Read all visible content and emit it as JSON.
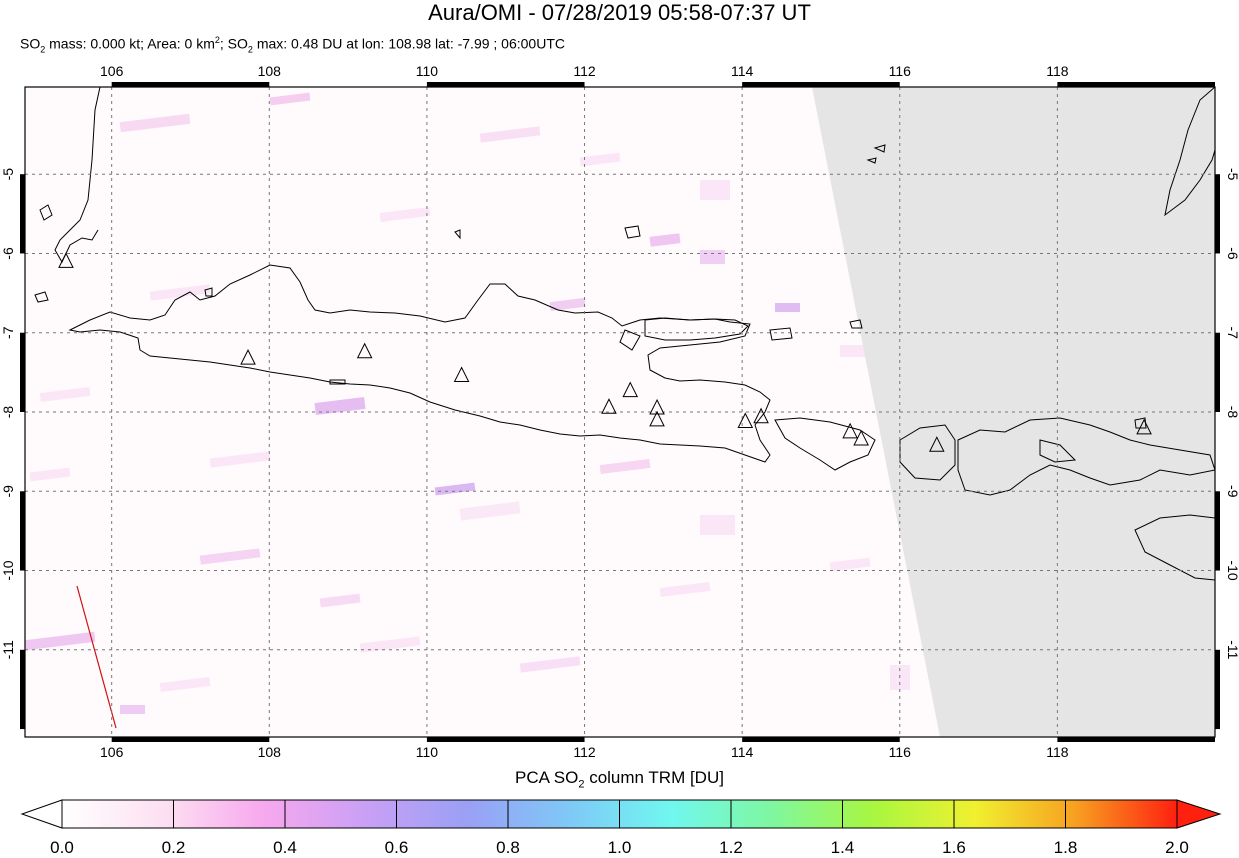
{
  "title": "Aura/OMI - 07/28/2019 05:58-07:37 UT",
  "subtitle": {
    "p1": "SO",
    "p1_sub": "2",
    "p2": " mass: 0.000 kt; Area: 0 km",
    "p2_sup": "2",
    "p3": "; SO",
    "p3_sub": "2",
    "p4": " max: 0.48 DU at lon: 108.98 lat: -7.99 ; 06:00UTC"
  },
  "map": {
    "lon_range": [
      104.9,
      120.0
    ],
    "lat_range": [
      -12.1,
      -3.9
    ],
    "lon_ticks": [
      "106",
      "108",
      "110",
      "112",
      "114",
      "116",
      "118"
    ],
    "lat_ticks": [
      "-5",
      "-6",
      "-7",
      "-8",
      "-9",
      "-10",
      "-11"
    ],
    "no_data_color": "#e5e5e5",
    "volcanoes": [
      [
        105.42,
        -6.1
      ],
      [
        107.73,
        -7.32
      ],
      [
        109.21,
        -7.24
      ],
      [
        110.44,
        -7.54
      ],
      [
        112.31,
        -7.94
      ],
      [
        112.58,
        -7.73
      ],
      [
        112.92,
        -7.95
      ],
      [
        112.92,
        -8.1
      ],
      [
        114.04,
        -8.12
      ],
      [
        114.24,
        -8.06
      ],
      [
        115.37,
        -8.25
      ],
      [
        115.51,
        -8.34
      ],
      [
        116.47,
        -8.42
      ],
      [
        119.1,
        -8.2
      ]
    ]
  },
  "colorbar": {
    "title_pre": "PCA SO",
    "title_sub": "2",
    "title_post": " column TRM [DU]",
    "ticks": [
      "0.0",
      "0.2",
      "0.4",
      "0.6",
      "0.8",
      "1.0",
      "1.2",
      "1.4",
      "1.6",
      "1.8",
      "2.0"
    ],
    "colors": [
      "#ffffff",
      "#fde0f2",
      "#f7a8ee",
      "#c9a0f5",
      "#9aa0f5",
      "#7fc8f7",
      "#70f7f0",
      "#7ff7a0",
      "#a8f740",
      "#f0f030",
      "#f7a020",
      "#ff2010"
    ]
  }
}
